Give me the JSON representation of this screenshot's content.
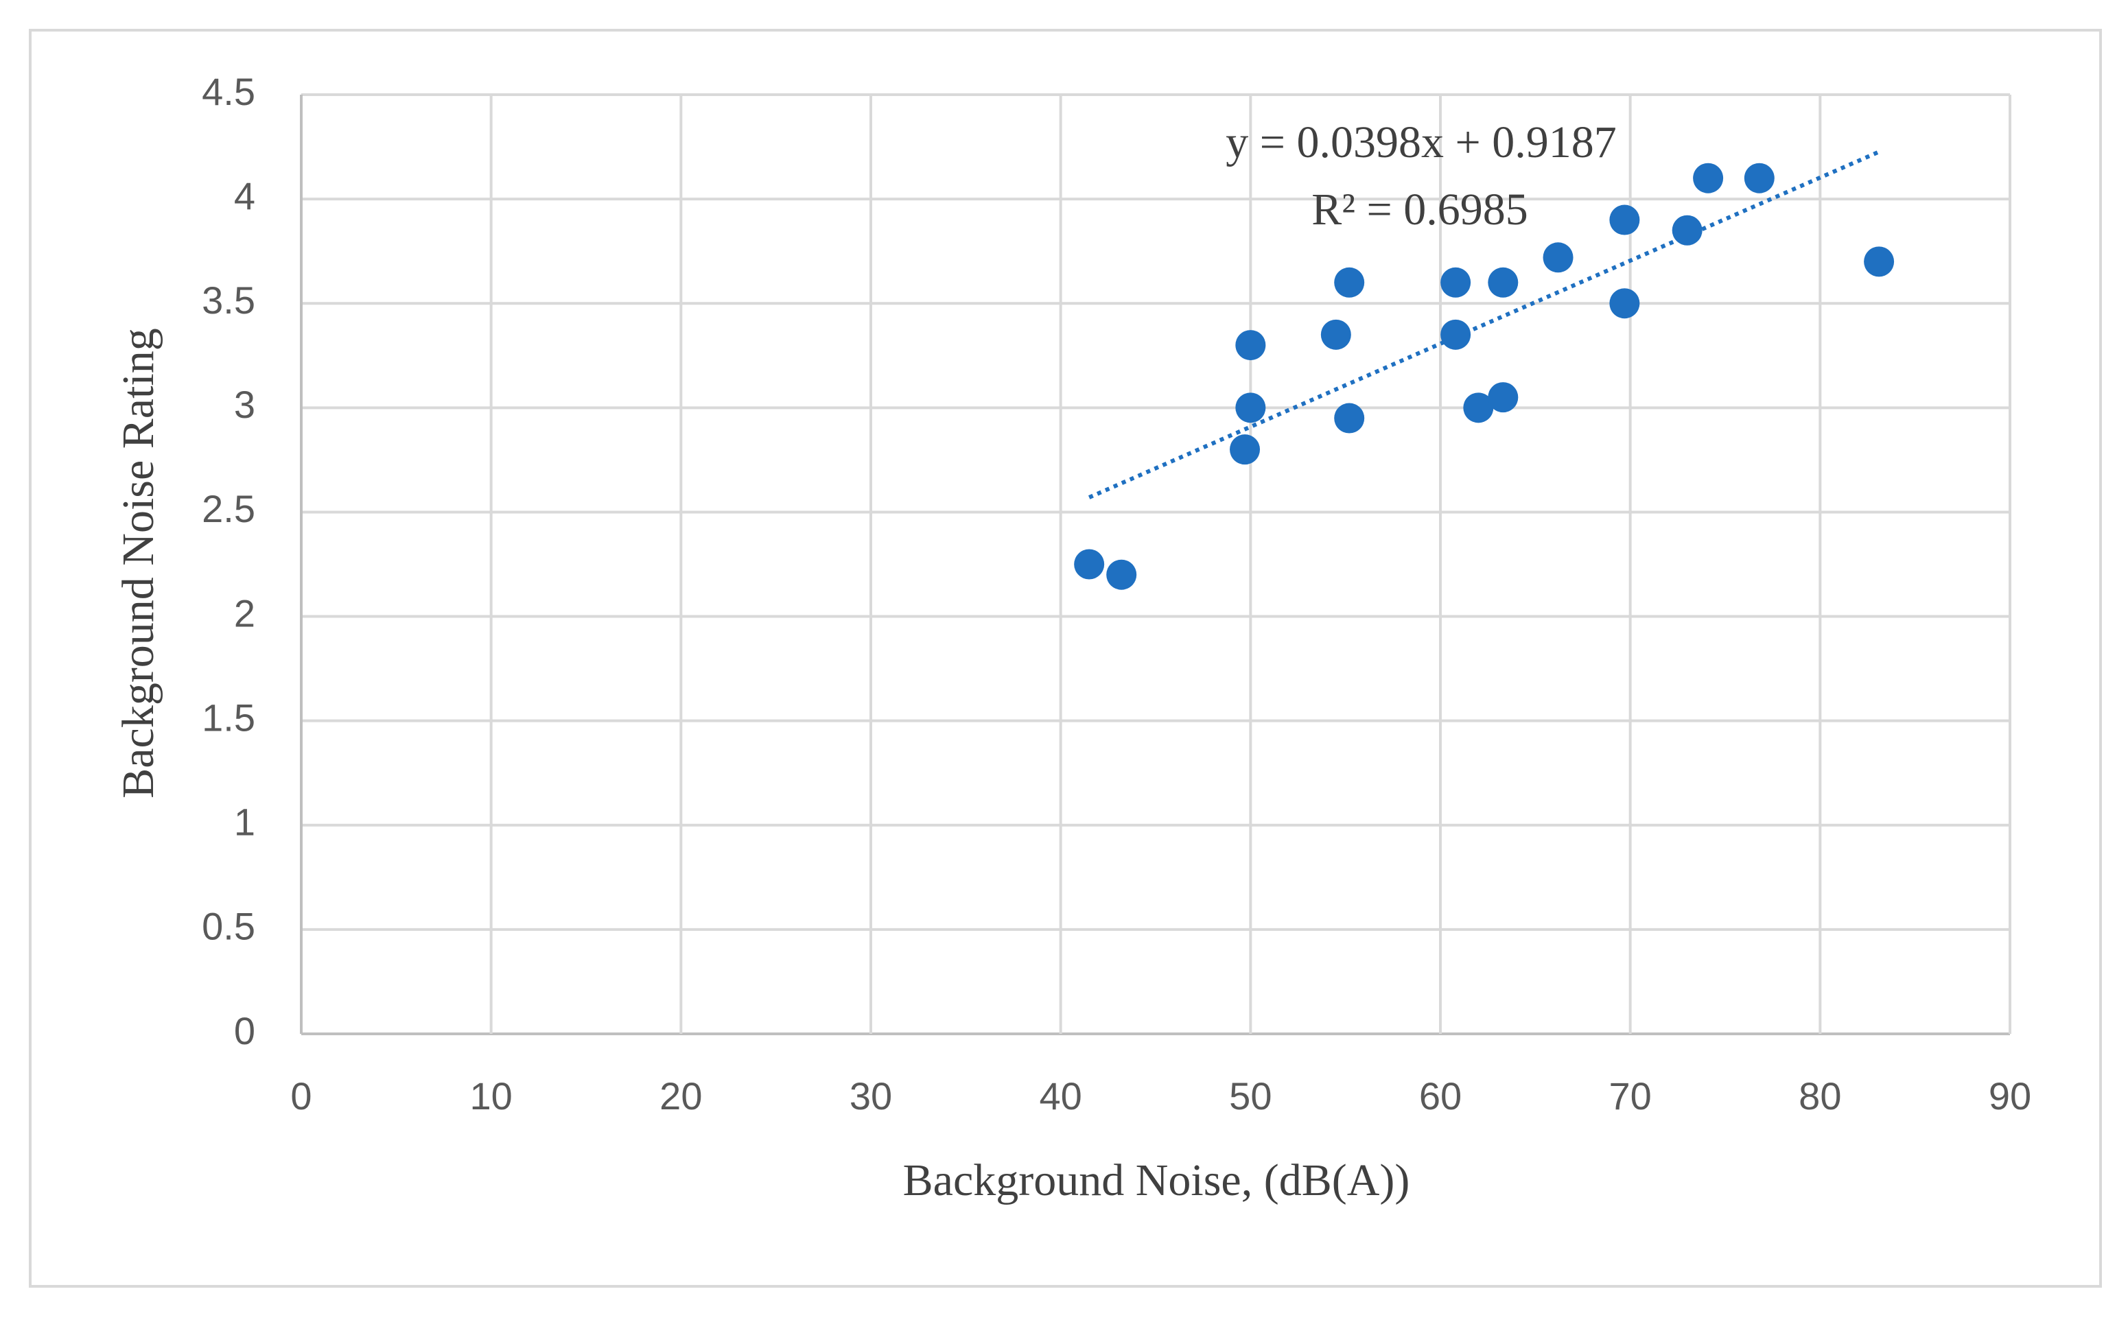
{
  "chart_data": {
    "type": "scatter",
    "x_label": "Background Noise, (dB(A))",
    "y_label": "Background Noise Rating",
    "x": [
      41.5,
      43.2,
      49.7,
      50,
      50,
      54.5,
      55.2,
      55.2,
      60.8,
      60.8,
      62,
      63.3,
      63.3,
      66.2,
      69.7,
      69.7,
      73,
      74.1,
      76.8,
      83.1
    ],
    "values": [
      2.25,
      2.2,
      2.8,
      3.0,
      3.3,
      3.35,
      3.6,
      2.95,
      3.6,
      3.35,
      3.0,
      3.05,
      3.6,
      3.72,
      3.9,
      3.5,
      3.85,
      4.1,
      4.1,
      3.7
    ],
    "color": "#1f70c1",
    "trendline": {
      "equation": "y = 0.0398x + 0.9187",
      "r2": "R² = 0.6985",
      "slope": 0.0398,
      "intercept": 0.9187,
      "style": "dotted"
    },
    "xlim": [
      0,
      90
    ],
    "xticks": [
      0,
      10,
      20,
      30,
      40,
      50,
      60,
      70,
      80,
      90
    ],
    "ylim": [
      0,
      4.5
    ],
    "yticks": [
      0,
      0.5,
      1,
      1.5,
      2,
      2.5,
      3,
      3.5,
      4,
      4.5
    ],
    "grid": true
  }
}
